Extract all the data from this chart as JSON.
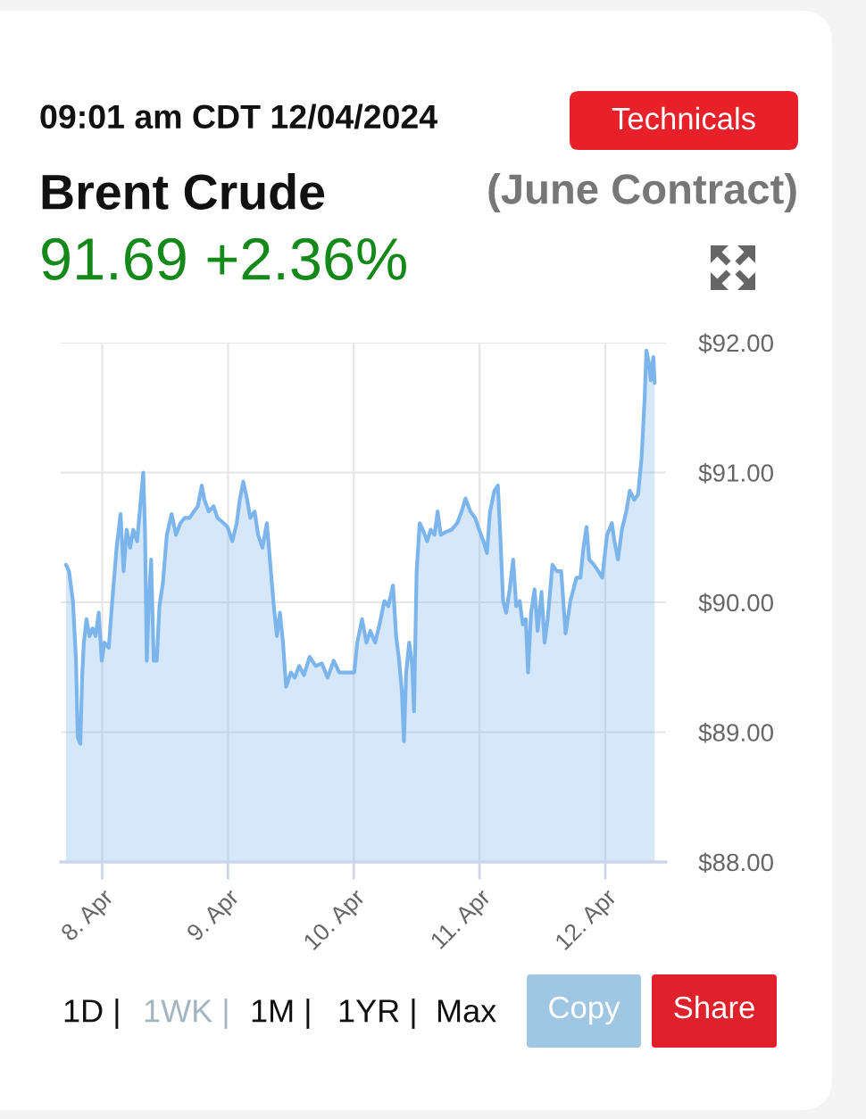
{
  "chart_data": {
    "type": "area",
    "title": "Brent Crude",
    "subtitle": "(June Contract)",
    "annotations": [
      "09:01 am CDT 12/04/2024",
      "91.69 +2.36%",
      "Technicals",
      "1D |",
      "1WK |",
      "1M |",
      "1YR |",
      "Max",
      "Copy",
      "Share"
    ],
    "x": [
      "2024-04-07T17:05",
      "2024-04-07T17:40",
      "2024-04-07T18:25",
      "2024-04-07T19:00",
      "2024-04-07T19:20",
      "2024-04-07T19:50",
      "2024-04-07T20:10",
      "2024-04-07T20:30",
      "2024-04-07T21:00",
      "2024-04-07T21:35",
      "2024-04-07T22:10",
      "2024-04-07T22:45",
      "2024-04-07T23:20",
      "2024-04-07T23:55",
      "2024-04-08T00:25",
      "2024-04-08T01:15",
      "2024-04-08T01:55",
      "2024-04-08T02:45",
      "2024-04-08T03:30",
      "2024-04-08T04:05",
      "2024-04-08T04:40",
      "2024-04-08T05:20",
      "2024-04-08T05:55",
      "2024-04-08T06:40",
      "2024-04-08T07:15",
      "2024-04-08T07:50",
      "2024-04-08T08:10",
      "2024-04-08T08:30",
      "2024-04-08T08:55",
      "2024-04-08T09:20",
      "2024-04-08T09:50",
      "2024-04-08T10:25",
      "2024-04-08T10:55",
      "2024-04-08T11:35",
      "2024-04-08T12:20",
      "2024-04-08T13:15",
      "2024-04-08T14:05",
      "2024-04-08T14:55",
      "2024-04-08T15:45",
      "2024-04-08T16:40",
      "2024-04-08T17:30",
      "2024-04-08T18:15",
      "2024-04-08T19:00",
      "2024-04-08T19:30",
      "2024-04-08T20:20",
      "2024-04-08T21:15",
      "2024-04-08T22:00",
      "2024-04-08T23:10",
      "2024-04-08T23:55",
      "2024-04-09T00:50",
      "2024-04-09T01:40",
      "2024-04-09T02:15",
      "2024-04-09T02:55",
      "2024-04-09T03:40",
      "2024-04-09T04:15",
      "2024-04-09T05:05",
      "2024-04-09T05:45",
      "2024-04-09T06:35",
      "2024-04-09T07:25",
      "2024-04-09T08:00",
      "2024-04-09T08:45",
      "2024-04-09T09:20",
      "2024-04-09T09:55",
      "2024-04-09T10:30",
      "2024-04-09T11:05",
      "2024-04-09T12:00",
      "2024-04-09T12:45",
      "2024-04-09T13:35",
      "2024-04-09T14:30",
      "2024-04-09T15:35",
      "2024-04-09T16:45",
      "2024-04-09T17:55",
      "2024-04-09T19:00",
      "2024-04-09T20:10",
      "2024-04-09T21:15",
      "2024-04-09T23:00",
      "2024-04-10T00:05",
      "2024-04-10T00:40",
      "2024-04-10T01:35",
      "2024-04-10T02:25",
      "2024-04-10T03:10",
      "2024-04-10T04:05",
      "2024-04-10T04:55",
      "2024-04-10T05:50",
      "2024-04-10T06:35",
      "2024-04-10T07:30",
      "2024-04-10T08:05",
      "2024-04-10T08:40",
      "2024-04-10T09:10",
      "2024-04-10T09:35",
      "2024-04-10T10:00",
      "2024-04-10T10:35",
      "2024-04-10T11:10",
      "2024-04-10T11:30",
      "2024-04-10T12:00",
      "2024-04-10T12:35",
      "2024-04-10T13:10",
      "2024-04-10T14:00",
      "2024-04-10T14:40",
      "2024-04-10T15:25",
      "2024-04-10T16:00",
      "2024-04-10T16:35",
      "2024-04-10T17:30",
      "2024-04-10T18:40",
      "2024-04-10T19:45",
      "2024-04-10T20:35",
      "2024-04-10T21:20",
      "2024-04-10T22:15",
      "2024-04-10T23:10",
      "2024-04-10T23:55",
      "2024-04-11T00:45",
      "2024-04-11T01:25",
      "2024-04-11T02:00",
      "2024-04-11T02:50",
      "2024-04-11T03:30",
      "2024-04-11T03:55",
      "2024-04-11T04:30",
      "2024-04-11T05:05",
      "2024-04-11T05:45",
      "2024-04-11T06:25",
      "2024-04-11T07:00",
      "2024-04-11T07:40",
      "2024-04-11T08:15",
      "2024-04-11T08:50",
      "2024-04-11T09:15",
      "2024-04-11T09:50",
      "2024-04-11T10:30",
      "2024-04-11T11:05",
      "2024-04-11T11:50",
      "2024-04-11T12:25",
      "2024-04-11T13:00",
      "2024-04-11T13:55",
      "2024-04-11T14:45",
      "2024-04-11T15:35",
      "2024-04-11T16:25",
      "2024-04-11T17:20",
      "2024-04-11T18:30",
      "2024-04-11T19:15",
      "2024-04-11T19:50",
      "2024-04-11T20:25",
      "2024-04-11T20:55",
      "2024-04-11T21:50",
      "2024-04-11T22:40",
      "2024-04-11T23:25",
      "2024-04-12T00:20",
      "2024-04-12T01:15",
      "2024-04-12T01:45",
      "2024-04-12T02:25",
      "2024-04-12T03:10",
      "2024-04-12T04:00",
      "2024-04-12T04:40",
      "2024-04-12T05:30",
      "2024-04-12T06:15",
      "2024-04-12T06:55",
      "2024-04-12T07:30",
      "2024-04-12T07:50",
      "2024-04-12T08:20",
      "2024-04-12T08:40",
      "2024-04-12T09:10",
      "2024-04-12T09:25"
    ],
    "series": [
      {
        "color": "#7cb5ec",
        "values": [
          90.29,
          90.24,
          90.01,
          89.55,
          88.96,
          88.91,
          89.42,
          89.69,
          89.87,
          89.74,
          89.8,
          89.74,
          89.92,
          89.55,
          89.69,
          89.65,
          90.01,
          90.42,
          90.68,
          90.24,
          90.56,
          90.42,
          90.56,
          90.47,
          90.74,
          91.0,
          90.56,
          89.55,
          90.01,
          90.33,
          89.55,
          89.55,
          89.97,
          90.15,
          90.52,
          90.68,
          90.52,
          90.61,
          90.65,
          90.65,
          90.7,
          90.74,
          90.9,
          90.79,
          90.7,
          90.74,
          90.65,
          90.61,
          90.58,
          90.47,
          90.61,
          90.79,
          90.93,
          90.79,
          90.65,
          90.7,
          90.52,
          90.42,
          90.61,
          90.33,
          89.97,
          89.74,
          89.92,
          89.69,
          89.35,
          89.46,
          89.42,
          89.51,
          89.44,
          89.58,
          89.51,
          89.53,
          89.42,
          89.55,
          89.46,
          89.46,
          89.46,
          89.69,
          89.87,
          89.69,
          89.78,
          89.69,
          89.83,
          90.01,
          89.97,
          90.13,
          89.74,
          89.55,
          89.32,
          88.93,
          89.46,
          89.69,
          89.51,
          89.16,
          90.24,
          90.61,
          90.56,
          90.47,
          90.56,
          90.52,
          90.7,
          90.52,
          90.54,
          90.56,
          90.61,
          90.7,
          90.8,
          90.7,
          90.65,
          90.56,
          90.47,
          90.38,
          90.7,
          90.86,
          90.9,
          90.56,
          90.01,
          89.92,
          90.1,
          90.33,
          89.97,
          90.01,
          89.83,
          89.87,
          89.46,
          89.92,
          90.1,
          89.78,
          90.08,
          89.69,
          89.87,
          90.29,
          90.24,
          90.24,
          89.76,
          90.01,
          90.19,
          90.19,
          90.42,
          90.58,
          90.33,
          90.29,
          90.24,
          90.19,
          90.52,
          90.61,
          90.47,
          90.33,
          90.56,
          90.7,
          90.86,
          90.79,
          90.83,
          91.11,
          91.57,
          91.94,
          91.84,
          91.71,
          91.89,
          91.69
        ]
      }
    ],
    "xlim": [
      "2024-04-07T16:05",
      "2024-04-12T11:35"
    ],
    "xticks": [
      {
        "value": "2024-04-08",
        "label": "8. Apr"
      },
      {
        "value": "2024-04-09",
        "label": "9. Apr"
      },
      {
        "value": "2024-04-10",
        "label": "10. Apr"
      },
      {
        "value": "2024-04-11",
        "label": "11. Apr"
      },
      {
        "value": "2024-04-12",
        "label": "12. Apr"
      }
    ],
    "ylim": [
      88,
      92
    ],
    "yticks": [
      {
        "value": 88,
        "label": "$88.00"
      },
      {
        "value": 89,
        "label": "$89.00"
      },
      {
        "value": 90,
        "label": "$90.00"
      },
      {
        "value": 91,
        "label": "$91.00"
      },
      {
        "value": 92,
        "label": "$92.00"
      }
    ],
    "grid": true
  }
}
